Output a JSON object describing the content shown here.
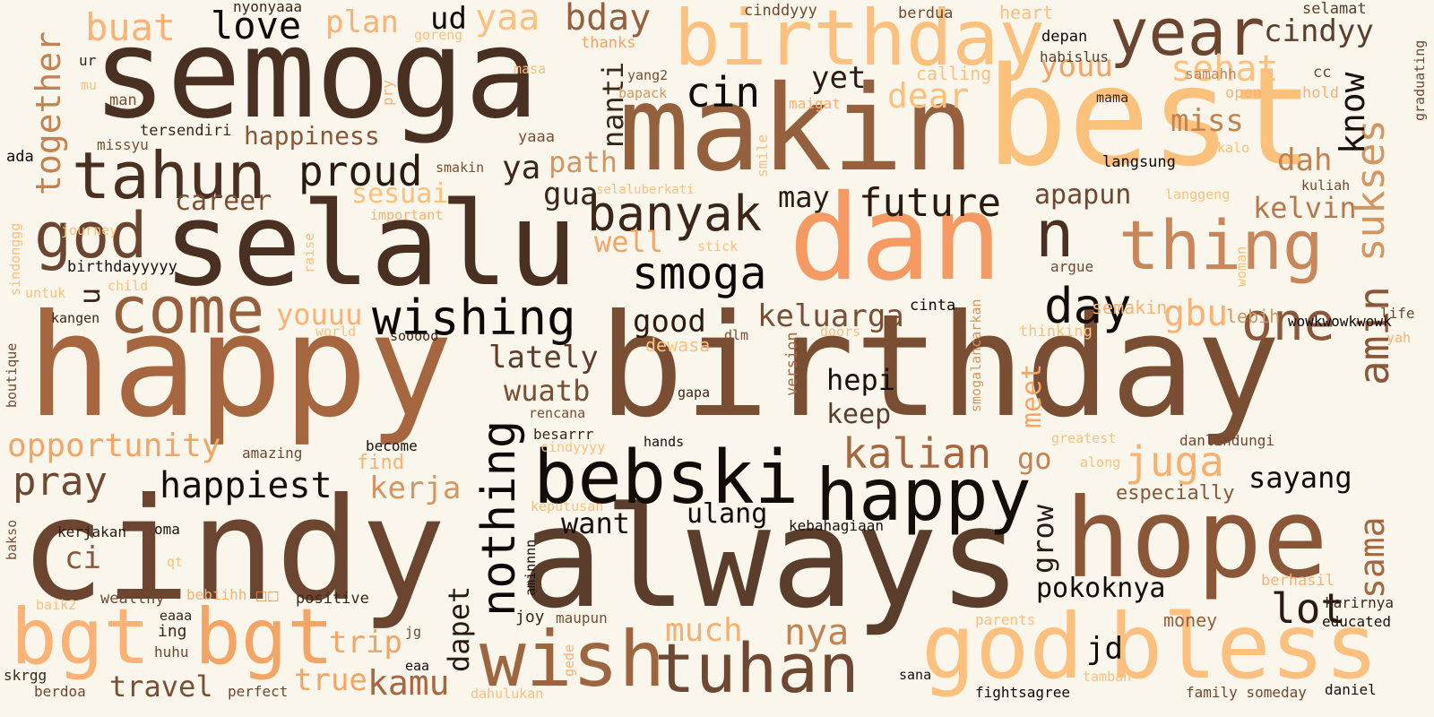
{
  "words": [
    {
      "text": "happy",
      "color": "#a6663f"
    },
    {
      "text": "birthday",
      "color": "#7a4e33"
    },
    {
      "text": "cindy",
      "color": "#6b4530"
    },
    {
      "text": "always",
      "color": "#5b3d2c"
    },
    {
      "text": "semoga",
      "color": "#4a3022"
    },
    {
      "text": "makin",
      "color": "#95603e"
    },
    {
      "text": "best",
      "color": "#fcc27c"
    },
    {
      "text": "selalu",
      "color": "#4a3022"
    },
    {
      "text": "dan",
      "color": "#f59a62"
    },
    {
      "text": "birthday",
      "color": "#fdc17f"
    },
    {
      "text": "hope",
      "color": "#8a5739"
    },
    {
      "text": "bebski",
      "color": "#120b08"
    },
    {
      "text": "happy",
      "color": "#150d08"
    },
    {
      "text": "god",
      "color": "#fdc07e"
    },
    {
      "text": "bless",
      "color": "#fdc07e"
    },
    {
      "text": "wish",
      "color": "#9d6540"
    },
    {
      "text": "tuhan",
      "color": "#6e4832"
    },
    {
      "text": "bgt",
      "color": "#fbb274"
    },
    {
      "text": "bgt",
      "color": "#f3a566"
    },
    {
      "text": "year",
      "color": "#6b4530"
    },
    {
      "text": "tahun",
      "color": "#4a3022"
    },
    {
      "text": "come",
      "color": "#96603d"
    },
    {
      "text": "god",
      "color": "#6b4530"
    },
    {
      "text": "thing",
      "color": "#c7875a"
    },
    {
      "text": "n",
      "color": "#4a3022"
    },
    {
      "text": "one",
      "color": "#8a5739"
    },
    {
      "text": "wishing",
      "color": "#0d0805"
    },
    {
      "text": "banyak",
      "color": "#3b261a"
    },
    {
      "text": "smoga",
      "color": "#0d0805"
    },
    {
      "text": "day",
      "color": "#120b08"
    },
    {
      "text": "nothing",
      "color": "#0d0805"
    },
    {
      "text": "proud",
      "color": "#2a1a10"
    },
    {
      "text": "future",
      "color": "#2a1a10"
    },
    {
      "text": "kalian",
      "color": "#a6663f"
    },
    {
      "text": "juga",
      "color": "#f7b070"
    },
    {
      "text": "happiest",
      "color": "#150d08"
    },
    {
      "text": "pray",
      "color": "#6e4832"
    },
    {
      "text": "opportunity",
      "color": "#f3a566"
    },
    {
      "text": "together",
      "color": "#c38252"
    },
    {
      "text": "sukses",
      "color": "#d49661"
    },
    {
      "text": "amin",
      "color": "#8a5739"
    },
    {
      "text": "sama",
      "color": "#a6663f"
    },
    {
      "text": "lot",
      "color": "#2a1a10"
    },
    {
      "text": "know",
      "color": "#1a100a"
    },
    {
      "text": "cindyy",
      "color": "#5b3d2c"
    },
    {
      "text": "sehat",
      "color": "#fdc17f"
    },
    {
      "text": "youu",
      "color": "#f3a566"
    },
    {
      "text": "dear",
      "color": "#fdc07e"
    },
    {
      "text": "miss",
      "color": "#c38252"
    },
    {
      "text": "dah",
      "color": "#c38252"
    },
    {
      "text": "kelvin",
      "color": "#b47a4e"
    },
    {
      "text": "gbu",
      "color": "#fbb274"
    },
    {
      "text": "apapun",
      "color": "#6e4832"
    },
    {
      "text": "keluarga",
      "color": "#7a4e33"
    },
    {
      "text": "good",
      "color": "#2a1a10"
    },
    {
      "text": "hepi",
      "color": "#1a100a"
    },
    {
      "text": "keep",
      "color": "#5b3d2c"
    },
    {
      "text": "meet",
      "color": "#f3a566"
    },
    {
      "text": "go",
      "color": "#c38252"
    },
    {
      "text": "grow",
      "color": "#2a1a10"
    },
    {
      "text": "sayang",
      "color": "#120b08"
    },
    {
      "text": "especially",
      "color": "#8a5739"
    },
    {
      "text": "pokoknya",
      "color": "#120b08"
    },
    {
      "text": "jd",
      "color": "#120b08"
    },
    {
      "text": "nya",
      "color": "#c38252"
    },
    {
      "text": "much",
      "color": "#f7b070"
    },
    {
      "text": "ulang",
      "color": "#0d0805"
    },
    {
      "text": "want",
      "color": "#1a100a"
    },
    {
      "text": "dapet",
      "color": "#2a1a10"
    },
    {
      "text": "kamu",
      "color": "#a6663f"
    },
    {
      "text": "true",
      "color": "#f3a566"
    },
    {
      "text": "trip",
      "color": "#f3a566"
    },
    {
      "text": "travel",
      "color": "#7a4e33"
    },
    {
      "text": "kerja",
      "color": "#d49661"
    },
    {
      "text": "find",
      "color": "#fbb274"
    },
    {
      "text": "wuatb",
      "color": "#7a4e33"
    },
    {
      "text": "lately",
      "color": "#5b3d2c"
    },
    {
      "text": "youuu",
      "color": "#fbb274"
    },
    {
      "text": "well",
      "color": "#f3a566"
    },
    {
      "text": "gua",
      "color": "#3b261a"
    },
    {
      "text": "ya",
      "color": "#3b261a"
    },
    {
      "text": "path",
      "color": "#d49661"
    },
    {
      "text": "sesuai",
      "color": "#fdc07e"
    },
    {
      "text": "may",
      "color": "#2a1a10"
    },
    {
      "text": "yet",
      "color": "#2a1a10"
    },
    {
      "text": "cin",
      "color": "#120b08"
    },
    {
      "text": "nanti",
      "color": "#3b261a"
    },
    {
      "text": "ud",
      "color": "#0d0805"
    },
    {
      "text": "yaa",
      "color": "#fdc07e"
    },
    {
      "text": "bday",
      "color": "#95603e"
    },
    {
      "text": "love",
      "color": "#0d0805"
    },
    {
      "text": "plan",
      "color": "#fbb274"
    },
    {
      "text": "buat",
      "color": "#fbb274"
    },
    {
      "text": "happiness",
      "color": "#8a5739"
    },
    {
      "text": "career",
      "color": "#7a4e33"
    },
    {
      "text": "u",
      "color": "#3b261a"
    },
    {
      "text": "ci",
      "color": "#8a5739"
    },
    {
      "text": "dewasa",
      "color": "#fdc07e"
    },
    {
      "text": "semakin",
      "color": "#fbb274"
    },
    {
      "text": "lebih",
      "color": "#d49661"
    },
    {
      "text": "heart",
      "color": "#fdc07e"
    },
    {
      "text": "berdua",
      "color": "#6e4832"
    },
    {
      "text": "cinddyyy",
      "color": "#6e4832"
    },
    {
      "text": "nyonyaaa",
      "color": "#3b261a"
    },
    {
      "text": "selamat",
      "color": "#5b3d2c"
    },
    {
      "text": "graduating",
      "color": "#6e4832"
    },
    {
      "text": "cc",
      "color": "#6e4832"
    },
    {
      "text": "hold",
      "color": "#fbb274"
    },
    {
      "text": "open",
      "color": "#fbb274"
    },
    {
      "text": "samahh",
      "color": "#c38252"
    },
    {
      "text": "mama",
      "color": "#3b261a"
    },
    {
      "text": "depan",
      "color": "#0d0805"
    },
    {
      "text": "habislus",
      "color": "#5b3d2c"
    },
    {
      "text": "calling",
      "color": "#fdc07e"
    },
    {
      "text": "thanks",
      "color": "#f3a566"
    },
    {
      "text": "goreng",
      "color": "#fdc07e"
    },
    {
      "text": "yang2",
      "color": "#7a4e33"
    },
    {
      "text": "bapack",
      "color": "#d49661"
    },
    {
      "text": "maigat",
      "color": "#fbb274"
    },
    {
      "text": "masa",
      "color": "#fdc07e"
    },
    {
      "text": "pry",
      "color": "#fbb274"
    },
    {
      "text": "man",
      "color": "#7a4e33"
    },
    {
      "text": "ur",
      "color": "#3b261a"
    },
    {
      "text": "mu",
      "color": "#fdc07e"
    },
    {
      "text": "tersendiri",
      "color": "#3b261a"
    },
    {
      "text": "missyu",
      "color": "#7a4e33"
    },
    {
      "text": "ada",
      "color": "#0d0805"
    },
    {
      "text": "smakin",
      "color": "#7a4e33"
    },
    {
      "text": "yaaa",
      "color": "#7a4e33"
    },
    {
      "text": "selaluberkati",
      "color": "#fdc07e"
    },
    {
      "text": "smile",
      "color": "#fdc07e"
    },
    {
      "text": "important",
      "color": "#fbb274"
    },
    {
      "text": "journey",
      "color": "#fdc07e"
    },
    {
      "text": "sindonggg",
      "color": "#fdc07e"
    },
    {
      "text": "birthdayyyyy",
      "color": "#1a100a"
    },
    {
      "text": "raise",
      "color": "#fdc07e"
    },
    {
      "text": "stick",
      "color": "#fdc07e"
    },
    {
      "text": "kalo",
      "color": "#fdc07e"
    },
    {
      "text": "kuliah",
      "color": "#6e4832"
    },
    {
      "text": "langgeng",
      "color": "#fdc07e"
    },
    {
      "text": "woman",
      "color": "#fdc07e"
    },
    {
      "text": "langsung",
      "color": "#0d0805"
    },
    {
      "text": "argue",
      "color": "#6e4832"
    },
    {
      "text": "wowkwowkwowk",
      "color": "#0d0805"
    },
    {
      "text": "life",
      "color": "#6e4832"
    },
    {
      "text": "yah",
      "color": "#fbb274"
    },
    {
      "text": "cinta",
      "color": "#0d0805"
    },
    {
      "text": "smogalancarkan",
      "color": "#d49661"
    },
    {
      "text": "thinking",
      "color": "#fdc07e"
    },
    {
      "text": "doors",
      "color": "#fdc07e"
    },
    {
      "text": "dlm",
      "color": "#7a4e33"
    },
    {
      "text": "version",
      "color": "#a6663f"
    },
    {
      "text": "world",
      "color": "#fdc07e"
    },
    {
      "text": "sooooo",
      "color": "#3b261a"
    },
    {
      "text": "kangen",
      "color": "#3b261a"
    },
    {
      "text": "child",
      "color": "#fdc07e"
    },
    {
      "text": "untuk",
      "color": "#fdc07e"
    },
    {
      "text": "boutique",
      "color": "#6e4832"
    },
    {
      "text": "amazing",
      "color": "#6e4832"
    },
    {
      "text": "become",
      "color": "#1a100a"
    },
    {
      "text": "besarrr",
      "color": "#3b261a"
    },
    {
      "text": "cindyyyy",
      "color": "#fdc07e"
    },
    {
      "text": "hands",
      "color": "#1a100a"
    },
    {
      "text": "rencana",
      "color": "#7a4e33"
    },
    {
      "text": "gapa",
      "color": "#3b261a"
    },
    {
      "text": "greatest",
      "color": "#fdc07e"
    },
    {
      "text": "along",
      "color": "#fdc07e"
    },
    {
      "text": "danlindungi",
      "color": "#6e4832"
    },
    {
      "text": "kebahagiaan",
      "color": "#1a100a"
    },
    {
      "text": "keputusan",
      "color": "#fdc07e"
    },
    {
      "text": "oma",
      "color": "#1a100a"
    },
    {
      "text": "kerjakan",
      "color": "#2a1a10"
    },
    {
      "text": "qt",
      "color": "#fdc07e"
    },
    {
      "text": "bakso",
      "color": "#7a4e33"
    },
    {
      "text": "aminnnn",
      "color": "#1a100a"
    },
    {
      "text": "wealthy",
      "color": "#6e4832"
    },
    {
      "text": "bebiihh",
      "color": "#fbb274"
    },
    {
      "text": "☐☐",
      "color": "#d49661"
    },
    {
      "text": "positive",
      "color": "#3b261a"
    },
    {
      "text": "baik2",
      "color": "#fdc07e"
    },
    {
      "text": "eaaa",
      "color": "#3b261a"
    },
    {
      "text": "ing",
      "color": "#3b261a"
    },
    {
      "text": "jg",
      "color": "#6e4832"
    },
    {
      "text": "huhu",
      "color": "#6e4832"
    },
    {
      "text": "eaa",
      "color": "#1a100a"
    },
    {
      "text": "joy",
      "color": "#3b261a"
    },
    {
      "text": "maupun",
      "color": "#7a4e33"
    },
    {
      "text": "gede",
      "color": "#fbb274"
    },
    {
      "text": "dahulukan",
      "color": "#fdc07e"
    },
    {
      "text": "skrgg",
      "color": "#3b261a"
    },
    {
      "text": "berdoa",
      "color": "#6e4832"
    },
    {
      "text": "perfect",
      "color": "#6e4832"
    },
    {
      "text": "money",
      "color": "#95603e"
    },
    {
      "text": "parents",
      "color": "#fdc07e"
    },
    {
      "text": "tambah",
      "color": "#fdc07e"
    },
    {
      "text": "fightsagree",
      "color": "#0d0805"
    },
    {
      "text": "family someday",
      "color": "#6e4832"
    },
    {
      "text": "daniel",
      "color": "#1a100a"
    },
    {
      "text": "sana",
      "color": "#1a100a"
    },
    {
      "text": "berhasil",
      "color": "#fbb274"
    },
    {
      "text": "karirnya",
      "color": "#3b261a"
    },
    {
      "text": "educated",
      "color": "#1a100a"
    }
  ]
}
